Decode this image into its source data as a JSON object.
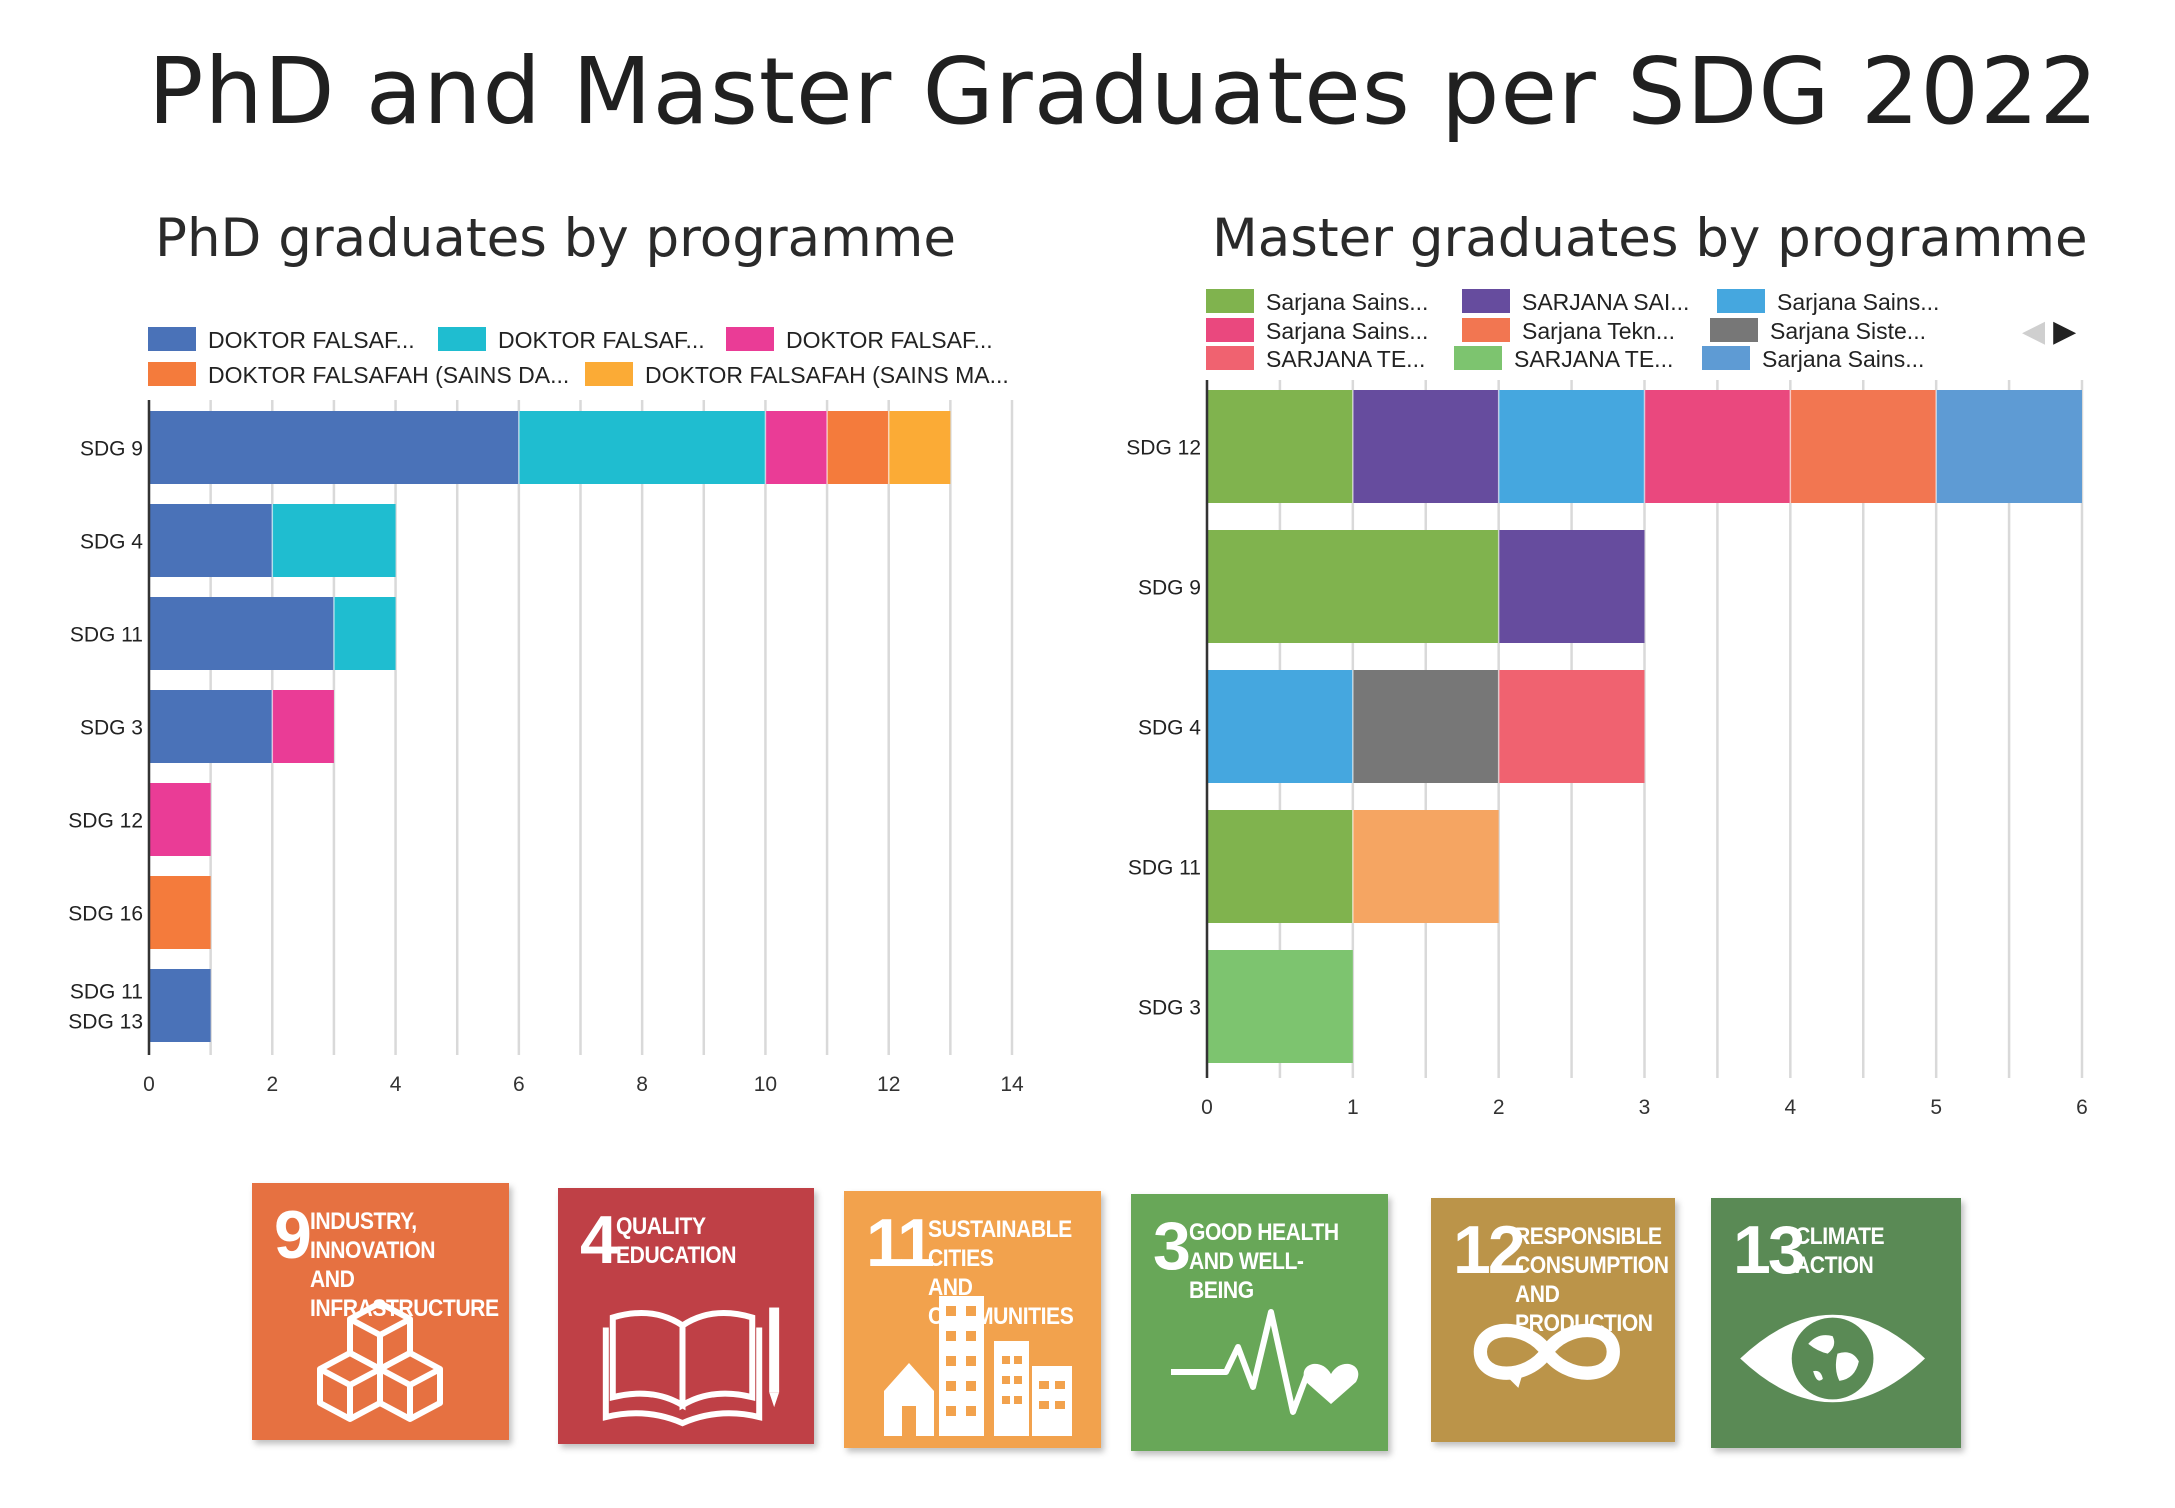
{
  "title": "PhD and Master Graduates per SDG 2022",
  "chart_data": [
    {
      "type": "bar",
      "orientation": "horizontal",
      "stacked": true,
      "title": "PhD graduates by programme",
      "categories": [
        "SDG 9",
        "SDG 4",
        "SDG 11",
        "SDG 3",
        "SDG 12",
        "SDG 16",
        "SDG 11\nSDG 13"
      ],
      "series": [
        {
          "name": "DOKTOR FALSAF...",
          "color": "#4a72b8",
          "values": [
            6,
            2,
            3,
            2,
            0,
            0,
            1
          ]
        },
        {
          "name": "DOKTOR FALSAF...",
          "color": "#1fbdd0",
          "values": [
            4,
            2,
            1,
            0,
            0,
            0,
            0
          ]
        },
        {
          "name": "DOKTOR FALSAF...",
          "color": "#ea3c96",
          "values": [
            1,
            0,
            0,
            1,
            1,
            0,
            0
          ]
        },
        {
          "name": "DOKTOR FALSAFAH (SAINS DA...",
          "color": "#f47b3c",
          "values": [
            1,
            0,
            0,
            0,
            0,
            1,
            0
          ]
        },
        {
          "name": "DOKTOR FALSAFAH (SAINS MA...",
          "color": "#fbab36",
          "values": [
            1,
            0,
            0,
            0,
            0,
            0,
            0
          ]
        }
      ],
      "xlim": [
        0,
        14
      ],
      "xticks": [
        "0",
        "2",
        "4",
        "6",
        "8",
        "10",
        "12",
        "14"
      ],
      "grid": true,
      "legend": "top"
    },
    {
      "type": "bar",
      "orientation": "horizontal",
      "stacked": true,
      "title": "Master graduates by programme",
      "categories": [
        "SDG 12",
        "SDG 9",
        "SDG 4",
        "SDG 11",
        "SDG 3"
      ],
      "series": [
        {
          "name": "Sarjana Sains...",
          "color": "#80b34e",
          "values": [
            1,
            2,
            0,
            1,
            0
          ]
        },
        {
          "name": "SARJANA SAI...",
          "color": "#664c9e",
          "values": [
            1,
            1,
            0,
            0,
            0
          ]
        },
        {
          "name": "Sarjana Sains...",
          "color": "#45a7df",
          "values": [
            1,
            0,
            1,
            0,
            0
          ]
        },
        {
          "name": "Sarjana Sains...",
          "color": "#ea487e",
          "values": [
            1,
            0,
            0,
            0,
            0
          ]
        },
        {
          "name": "Sarjana Tekn...",
          "color": "#f27651",
          "values": [
            1,
            0,
            0,
            0,
            0
          ]
        },
        {
          "name": "Sarjana Siste...",
          "color": "#777777",
          "values": [
            0,
            0,
            1,
            0,
            0
          ]
        },
        {
          "name": "SARJANA TE...",
          "color": "#f06270",
          "values": [
            0,
            0,
            1,
            0,
            0
          ]
        },
        {
          "name": "SARJANA TE...",
          "color": "#7dc46f",
          "values": [
            0,
            0,
            0,
            0,
            1
          ]
        },
        {
          "name": "Sarjana Sains...",
          "color": "#5e9bd4",
          "values": [
            1,
            0,
            0,
            0,
            0
          ]
        },
        {
          "name": "",
          "color": "#f5a562",
          "values": [
            0,
            0,
            0,
            1,
            0
          ]
        }
      ],
      "xlim": [
        0,
        6
      ],
      "xticks": [
        "0",
        "1",
        "2",
        "3",
        "4",
        "5",
        "6"
      ],
      "grid": true,
      "legend": "top"
    }
  ],
  "sdg_tiles": [
    {
      "number": "9",
      "line1": "INDUSTRY, INNOVATION",
      "line2": "AND INFRASTRUCTURE",
      "line3": "",
      "color": "#e67141",
      "icon": "cubes-icon"
    },
    {
      "number": "4",
      "line1": "QUALITY",
      "line2": "EDUCATION",
      "line3": "",
      "color": "#bf4046",
      "icon": "book-pencil-icon"
    },
    {
      "number": "11",
      "line1": "SUSTAINABLE CITIES",
      "line2": "AND COMMUNITIES",
      "line3": "",
      "color": "#f2a24d",
      "icon": "city-buildings-icon"
    },
    {
      "number": "3",
      "line1": "GOOD HEALTH",
      "line2": "AND WELL-BEING",
      "line3": "",
      "color": "#68a758",
      "icon": "heartbeat-icon"
    },
    {
      "number": "12",
      "line1": "RESPONSIBLE",
      "line2": "CONSUMPTION",
      "line3": "AND PRODUCTION",
      "color": "#bb9449",
      "icon": "infinity-icon"
    },
    {
      "number": "13",
      "line1": "CLIMATE",
      "line2": "ACTION",
      "line3": "",
      "color": "#5a8a55",
      "icon": "eye-globe-icon"
    }
  ]
}
